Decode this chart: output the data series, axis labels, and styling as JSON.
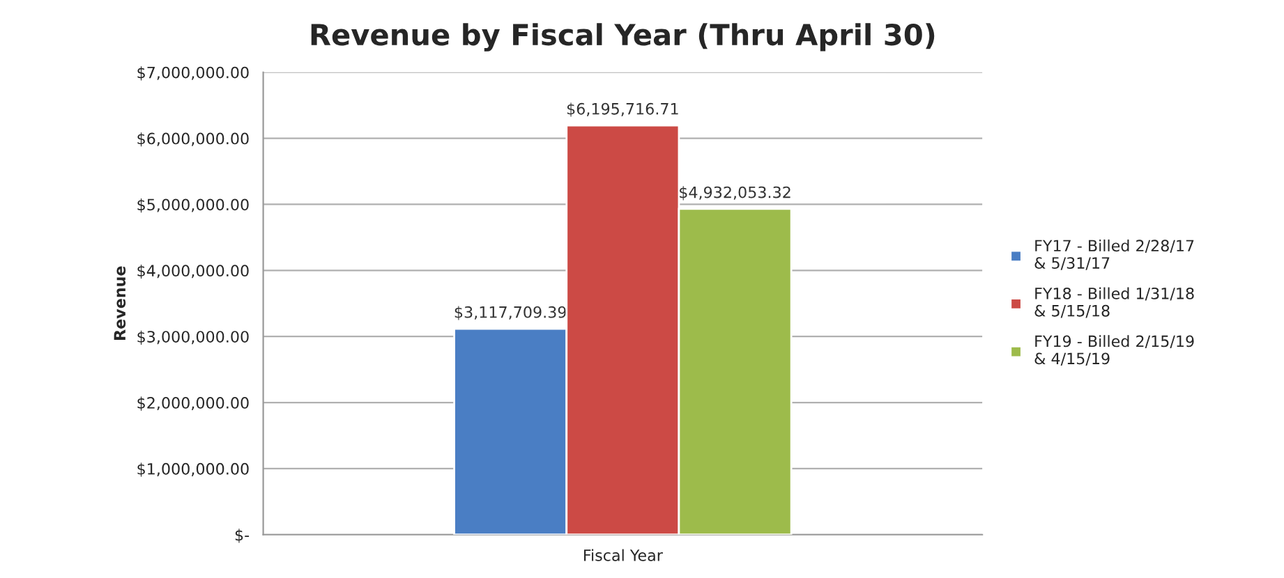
{
  "chart_data": {
    "type": "bar",
    "title": "Revenue by Fiscal Year (Thru April 30)",
    "xlabel": "Fiscal Year",
    "ylabel": "Revenue",
    "categories": [
      null
    ],
    "series": [
      {
        "name": "FY17 - Billed 2/28/17\n& 5/31/17",
        "color": "#4a7ec4",
        "values": [
          3117709.39
        ],
        "value_labels": [
          "$3,117,709.39"
        ]
      },
      {
        "name": "FY18 - Billed 1/31/18\n& 5/15/18",
        "color": "#cc4a45",
        "values": [
          6195716.71
        ],
        "value_labels": [
          "$6,195,716.71"
        ]
      },
      {
        "name": "FY19 - Billed 2/15/19\n& 4/15/19",
        "color": "#9dbb4b",
        "values": [
          4932053.32
        ],
        "value_labels": [
          "$4,932,053.32"
        ]
      }
    ],
    "ylim": [
      0,
      7000000
    ],
    "yticks": [
      {
        "value": 0,
        "label": "$-"
      },
      {
        "value": 1000000,
        "label": "$1,000,000.00"
      },
      {
        "value": 2000000,
        "label": "$2,000,000.00"
      },
      {
        "value": 3000000,
        "label": "$3,000,000.00"
      },
      {
        "value": 4000000,
        "label": "$4,000,000.00"
      },
      {
        "value": 5000000,
        "label": "$5,000,000.00"
      },
      {
        "value": 6000000,
        "label": "$6,000,000.00"
      },
      {
        "value": 7000000,
        "label": "$7,000,000.00"
      }
    ],
    "grid": "y",
    "legend": "right"
  }
}
